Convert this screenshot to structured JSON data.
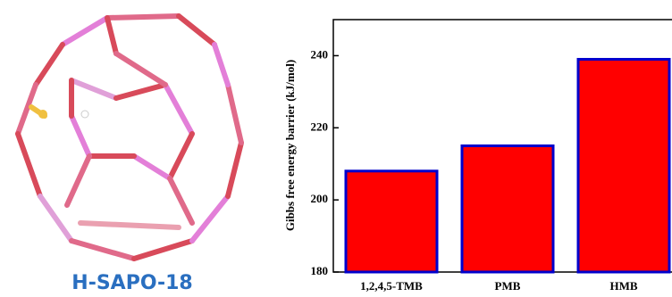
{
  "structure_label": "H-SAPO-18",
  "chart_data": {
    "type": "bar",
    "ylabel": "Gibbs free energy barrier (kJ/mol)",
    "categories": [
      "1,2,4,5-TMB",
      "PMB",
      "HMB"
    ],
    "values": [
      208,
      215,
      239
    ],
    "color": "#ff0000",
    "edgecolor": "#0000cc",
    "ylim": [
      180,
      250
    ],
    "yticks": [
      180,
      200,
      220,
      240
    ]
  }
}
